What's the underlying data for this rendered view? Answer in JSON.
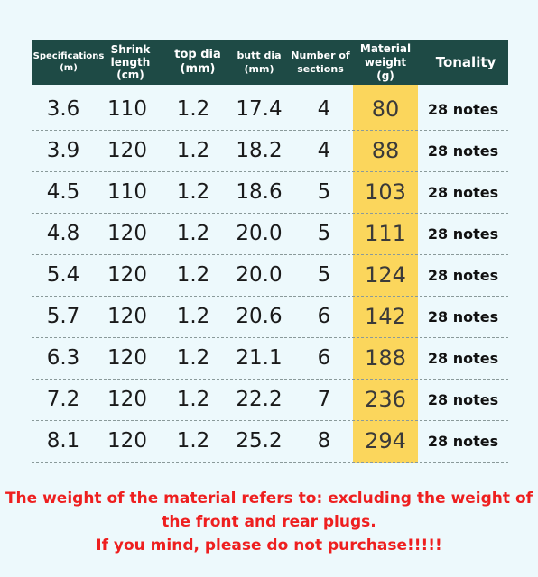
{
  "headers": [
    "Specifications\n(m)",
    "Shrink\nlength\n(cm)",
    "top dia\n(mm)",
    "butt dia\n(mm)",
    "Number of\nsections",
    "Material\nweight\n(g)",
    "Tonality"
  ],
  "rows": [
    [
      "3.6",
      "110",
      "1.2",
      "17.4",
      "4",
      "80",
      "28 notes"
    ],
    [
      "3.9",
      "120",
      "1.2",
      "18.2",
      "4",
      "88",
      "28 notes"
    ],
    [
      "4.5",
      "110",
      "1.2",
      "18.6",
      "5",
      "103",
      "28 notes"
    ],
    [
      "4.8",
      "120",
      "1.2",
      "20.0",
      "5",
      "111",
      "28 notes"
    ],
    [
      "5.4",
      "120",
      "1.2",
      "20.0",
      "5",
      "124",
      "28 notes"
    ],
    [
      "5.7",
      "120",
      "1.2",
      "20.6",
      "6",
      "142",
      "28 notes"
    ],
    [
      "6.3",
      "120",
      "1.2",
      "21.1",
      "6",
      "188",
      "28 notes"
    ],
    [
      "7.2",
      "120",
      "1.2",
      "22.2",
      "7",
      "236",
      "28 notes"
    ],
    [
      "8.1",
      "120",
      "1.2",
      "25.2",
      "8",
      "294",
      "28 notes"
    ]
  ],
  "notice": {
    "line1": "The weight of the material refers to: excluding the weight of",
    "line2": "the front and rear plugs.",
    "line3": "If you mind, please do not purchase!!!!!"
  },
  "colors": {
    "header_bg": "#1e4a45",
    "highlight": "#fbd65c",
    "notice": "#ee1f1f"
  }
}
